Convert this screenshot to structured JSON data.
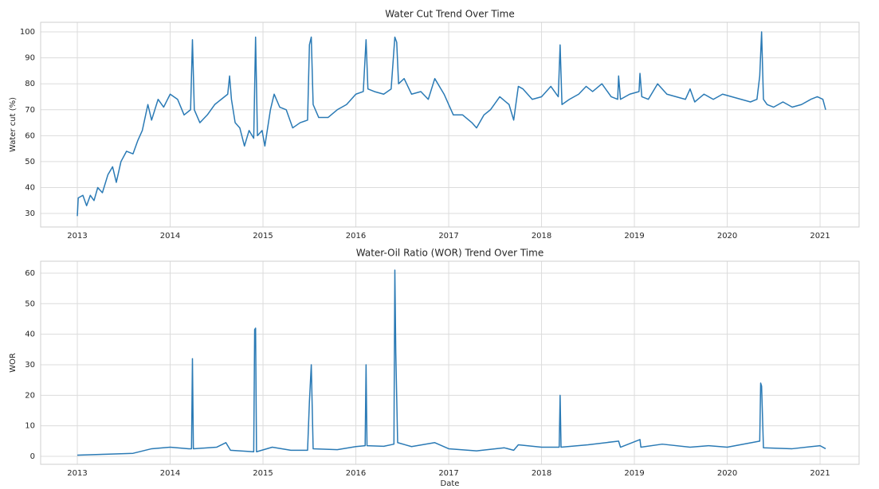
{
  "chart_data": [
    {
      "type": "line",
      "title": "Water Cut Trend Over Time",
      "ylabel": "Water cut (%)",
      "color": "#2a7ab5",
      "grid": true,
      "xlim": [
        2012.605,
        2021.42
      ],
      "xticks": [
        2013,
        2014,
        2015,
        2016,
        2017,
        2018,
        2019,
        2020,
        2021
      ],
      "ylim": [
        24.8,
        103.7
      ],
      "yticks": [
        30,
        40,
        50,
        60,
        70,
        80,
        90,
        100
      ],
      "x": [
        2013.0,
        2013.01,
        2013.06,
        2013.1,
        2013.14,
        2013.18,
        2013.22,
        2013.27,
        2013.33,
        2013.38,
        2013.42,
        2013.47,
        2013.53,
        2013.6,
        2013.65,
        2013.7,
        2013.76,
        2013.8,
        2013.87,
        2013.93,
        2014.0,
        2014.08,
        2014.15,
        2014.22,
        2014.24,
        2014.26,
        2014.32,
        2014.4,
        2014.48,
        2014.55,
        2014.62,
        2014.64,
        2014.66,
        2014.7,
        2014.75,
        2014.8,
        2014.85,
        2014.9,
        2014.92,
        2014.94,
        2014.99,
        2015.02,
        2015.08,
        2015.12,
        2015.18,
        2015.25,
        2015.32,
        2015.4,
        2015.48,
        2015.5,
        2015.52,
        2015.54,
        2015.6,
        2015.7,
        2015.8,
        2015.9,
        2016.0,
        2016.08,
        2016.11,
        2016.13,
        2016.2,
        2016.3,
        2016.38,
        2016.42,
        2016.44,
        2016.46,
        2016.52,
        2016.6,
        2016.7,
        2016.78,
        2016.85,
        2016.95,
        2017.0,
        2017.05,
        2017.15,
        2017.25,
        2017.3,
        2017.38,
        2017.45,
        2017.55,
        2017.65,
        2017.7,
        2017.75,
        2017.8,
        2017.9,
        2018.0,
        2018.1,
        2018.18,
        2018.2,
        2018.22,
        2018.3,
        2018.4,
        2018.48,
        2018.55,
        2018.65,
        2018.75,
        2018.82,
        2018.83,
        2018.85,
        2018.95,
        2019.05,
        2019.06,
        2019.08,
        2019.15,
        2019.25,
        2019.35,
        2019.45,
        2019.55,
        2019.6,
        2019.65,
        2019.75,
        2019.85,
        2019.95,
        2020.05,
        2020.15,
        2020.25,
        2020.32,
        2020.35,
        2020.37,
        2020.39,
        2020.43,
        2020.5,
        2020.6,
        2020.7,
        2020.8,
        2020.9,
        2020.97,
        2021.03,
        2021.06
      ],
      "values": [
        29,
        36,
        37,
        33,
        37,
        35,
        40,
        38,
        45,
        48,
        42,
        50,
        54,
        53,
        58,
        62,
        72,
        66,
        74,
        71,
        76,
        74,
        68,
        70,
        97,
        70,
        65,
        68,
        72,
        74,
        76,
        83,
        74,
        65,
        63,
        56,
        62,
        59,
        98,
        60,
        62,
        56,
        70,
        76,
        71,
        70,
        63,
        65,
        66,
        95,
        98,
        72,
        67,
        67,
        70,
        72,
        76,
        77,
        97,
        78,
        77,
        76,
        78,
        98,
        96,
        80,
        82,
        76,
        77,
        74,
        82,
        76,
        72,
        68,
        68,
        65,
        63,
        68,
        70,
        75,
        72,
        66,
        79,
        78,
        74,
        75,
        79,
        75,
        95,
        72,
        74,
        76,
        79,
        77,
        80,
        75,
        74,
        83,
        74,
        76,
        77,
        84,
        75,
        74,
        80,
        76,
        75,
        74,
        78,
        73,
        76,
        74,
        76,
        75,
        74,
        73,
        74,
        83,
        100,
        74,
        72,
        71,
        73,
        71,
        72,
        74,
        75,
        74,
        70
      ]
    },
    {
      "type": "line",
      "title": "Water-Oil Ratio (WOR) Trend Over Time",
      "ylabel": "WOR",
      "xlabel": "Date",
      "color": "#2a7ab5",
      "grid": true,
      "xlim": [
        2012.605,
        2021.42
      ],
      "xticks": [
        2013,
        2014,
        2015,
        2016,
        2017,
        2018,
        2019,
        2020,
        2021
      ],
      "ylim": [
        -2.6,
        63.9
      ],
      "yticks": [
        0,
        10,
        20,
        30,
        40,
        50,
        60
      ],
      "x": [
        2013.0,
        2013.3,
        2013.6,
        2013.8,
        2014.0,
        2014.2,
        2014.23,
        2014.24,
        2014.25,
        2014.5,
        2014.6,
        2014.65,
        2014.9,
        2014.91,
        2014.92,
        2014.93,
        2015.1,
        2015.3,
        2015.48,
        2015.5,
        2015.52,
        2015.54,
        2015.8,
        2016.0,
        2016.1,
        2016.11,
        2016.12,
        2016.3,
        2016.41,
        2016.42,
        2016.43,
        2016.45,
        2016.6,
        2016.85,
        2017.0,
        2017.3,
        2017.6,
        2017.7,
        2017.75,
        2018.0,
        2018.19,
        2018.2,
        2018.21,
        2018.5,
        2018.83,
        2018.85,
        2019.06,
        2019.07,
        2019.3,
        2019.6,
        2019.8,
        2020.0,
        2020.35,
        2020.36,
        2020.37,
        2020.39,
        2020.7,
        2021.0,
        2021.06
      ],
      "values": [
        0.4,
        0.7,
        1.0,
        2.5,
        3,
        2.5,
        2.5,
        32,
        2.5,
        3,
        4.5,
        2,
        1.5,
        41.5,
        42,
        1.5,
        3,
        2,
        2,
        18,
        30,
        2.5,
        2.2,
        3.2,
        3.5,
        30,
        3.5,
        3.3,
        4,
        61,
        34,
        4.5,
        3.2,
        4.5,
        2.5,
        1.8,
        2.8,
        2,
        3.8,
        3,
        3,
        20,
        3,
        3.8,
        5,
        3,
        5.5,
        3,
        4,
        3,
        3.5,
        3,
        5,
        24,
        23,
        2.8,
        2.5,
        3.5,
        2.5
      ]
    }
  ]
}
